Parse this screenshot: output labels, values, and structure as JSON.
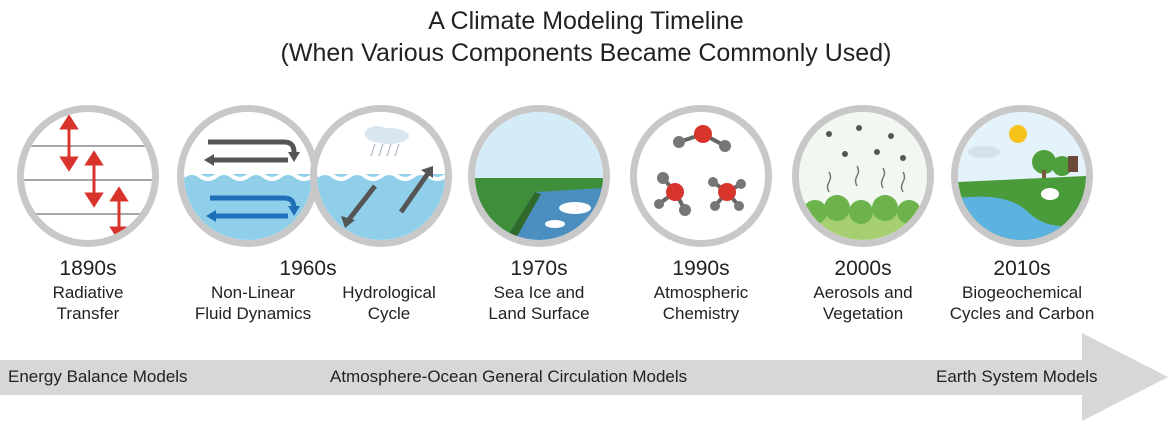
{
  "title_line1": "A Climate Modeling Timeline",
  "title_line2": "(When Various Components Became Commonly Used)",
  "eras": [
    {
      "decade": "1890s",
      "labels": [
        "Radiative\nTransfer"
      ]
    },
    {
      "decade": "1960s",
      "labels": [
        "Non-Linear\nFluid Dynamics",
        "Hydrological\nCycle"
      ]
    },
    {
      "decade": "1970s",
      "labels": [
        "Sea Ice and\nLand Surface"
      ]
    },
    {
      "decade": "1990s",
      "labels": [
        "Atmospheric\nChemistry"
      ]
    },
    {
      "decade": "2000s",
      "labels": [
        "Aerosols and\nVegetation"
      ]
    },
    {
      "decade": "2010s",
      "labels": [
        "Biogeochemical\nCycles and Carbon"
      ]
    }
  ],
  "model_bands": [
    "Energy Balance Models",
    "Atmosphere-Ocean General Circulation Models",
    "Earth System Models"
  ],
  "colors": {
    "arrow": "#d7d7d7",
    "circle_border": "#c8c8c8",
    "radiation_arrow": "#d9342b",
    "water": "#8fcfea",
    "land": "#3f8f3a"
  }
}
